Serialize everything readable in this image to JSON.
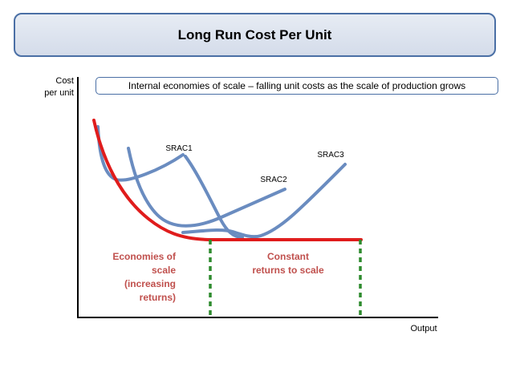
{
  "title": "Long Run Cost Per Unit",
  "subtitle": "Internal economies of scale – falling unit costs as the scale of production grows",
  "y_axis_label": [
    "Cost",
    "per unit"
  ],
  "x_axis_label": "Output",
  "curves": [
    {
      "name": "SRAC1",
      "color": "#6a8cc0"
    },
    {
      "name": "SRAC2",
      "color": "#6a8cc0"
    },
    {
      "name": "SRAC3",
      "color": "#6a8cc0"
    }
  ],
  "lrac_color": "#e01c1c",
  "region_divider_color": "#2e8b2e",
  "annotations": {
    "economies": [
      "Economies of",
      "scale",
      "(increasing",
      "returns)"
    ],
    "constant": [
      "Constant",
      "returns to scale"
    ],
    "text_color": "#c0504d"
  }
}
